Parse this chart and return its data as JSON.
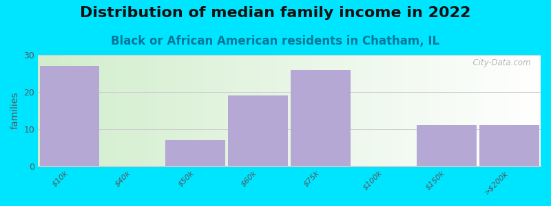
{
  "title": "Distribution of median family income in 2022",
  "subtitle": "Black or African American residents in Chatham, IL",
  "categories": [
    "$10k",
    "$40k",
    "$50k",
    "$60k",
    "$75k",
    "$100k",
    "$150k",
    ">$200k"
  ],
  "values": [
    27,
    0,
    7,
    19,
    26,
    0,
    11,
    11
  ],
  "bar_color": "#b5a8d5",
  "background_outer": "#00e5ff",
  "ylabel": "families",
  "ylim": [
    0,
    30
  ],
  "yticks": [
    0,
    10,
    20,
    30
  ],
  "title_fontsize": 16,
  "subtitle_fontsize": 12,
  "subtitle_color": "#007799",
  "watermark": "  City-Data.com",
  "grid_color": "#cccccc",
  "tick_color": "#555555"
}
